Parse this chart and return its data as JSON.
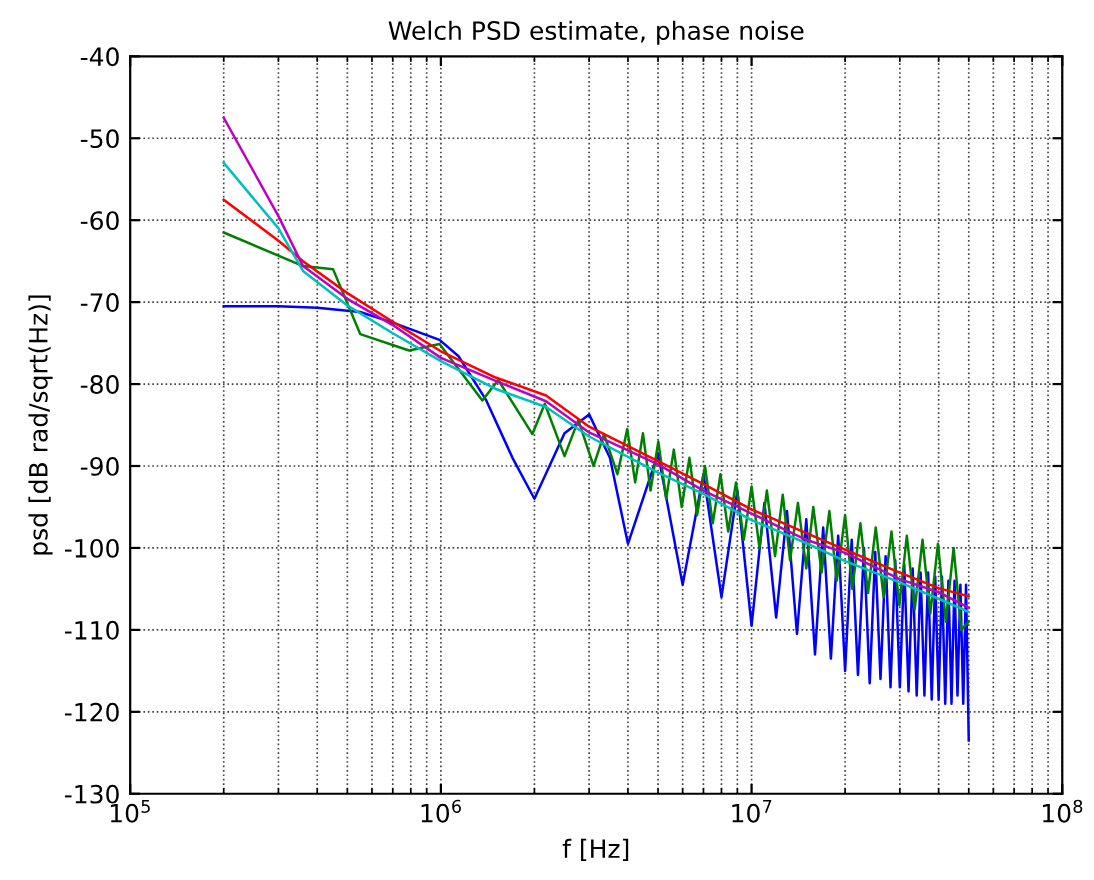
{
  "chart_data": {
    "type": "line",
    "title": "Welch PSD estimate, phase noise",
    "xlabel": "f [Hz]",
    "ylabel": "psd [dB rad/sqrt(Hz)]",
    "log": "x",
    "grid": true,
    "line_style": "solid",
    "xlim": [
      100000,
      100000000
    ],
    "xticks": [
      {
        "value": 100000,
        "label": "10$^{5}$"
      },
      {
        "value": 1000000,
        "label": "10$^{6}$"
      },
      {
        "value": 10000000,
        "label": "10$^{7}$"
      },
      {
        "value": 100000000,
        "label": "10$^{8}$"
      }
    ],
    "ylim": [
      -130,
      -40
    ],
    "yticks": [
      -130,
      -120,
      -110,
      -100,
      -90,
      -80,
      -70,
      -60,
      -50,
      -40
    ],
    "series": [
      {
        "color": "#0000ff",
        "x": [
          200000.0,
          300000.0,
          400000.0,
          550000.0,
          700000.0,
          990000.0,
          1140000.0,
          1400000.0,
          1700000.0,
          2000000.0,
          2500000.0,
          3000000.0,
          3500000.0,
          4000000.0,
          5000000.0,
          6000000.0,
          7000000.0,
          8000000.0,
          9000000.0,
          10000000.0,
          11000000.0,
          12000000.0,
          13000000.0,
          14000000.0,
          15000000.0,
          16000000.0,
          17000000.0,
          18000000.0,
          19000000.0,
          20000000.0,
          21000000.0,
          22000000.0,
          23000000.0,
          24000000.0,
          25000000.0,
          26000000.0,
          27000000.0,
          28000000.0,
          29000000.0,
          30000000.0,
          31000000.0,
          32000000.0,
          33000000.0,
          34000000.0,
          35000000.0,
          36000000.0,
          37000000.0,
          38000000.0,
          39000000.0,
          40000000.0,
          41000000.0,
          42000000.0,
          43000000.0,
          44000000.0,
          45000000.0,
          46000000.0,
          47000000.0,
          48000000.0,
          49000000.0,
          50000000.0
        ],
        "values": [
          -70.5,
          -70.5,
          -70.7,
          -71.2,
          -72.5,
          -74.6,
          -76.6,
          -82,
          -89,
          -94,
          -86,
          -83.7,
          -89,
          -99.5,
          -88.5,
          -104.5,
          -91,
          -106,
          -93,
          -109.5,
          -94.5,
          -108.5,
          -95.5,
          -110.5,
          -96.5,
          -113,
          -97.5,
          -113.5,
          -98.5,
          -115,
          -99,
          -115.5,
          -100,
          -116.5,
          -100.5,
          -116,
          -101,
          -117,
          -101.5,
          -117,
          -102,
          -117.5,
          -102.5,
          -118,
          -103,
          -118,
          -103,
          -118.5,
          -103.5,
          -118.5,
          -103.5,
          -119,
          -104,
          -119,
          -104,
          -118,
          -104.5,
          -119,
          -104.5,
          -123.5
        ]
      },
      {
        "color": "#008000",
        "x": [
          200000.0,
          360000.0,
          450000.0,
          550000.0,
          790000.0,
          990000.0,
          1360000.0,
          1530000.0,
          1970000.0,
          2160000.0,
          2500000.0,
          2770000.0,
          3100000.0,
          3350000.0,
          3700000.0,
          3980000.0,
          4220000.0,
          4470000.0,
          4730000.0,
          5010000.0,
          5310000.0,
          5620000.0,
          5960000.0,
          6310000.0,
          6680000.0,
          7080000.0,
          7500000.0,
          7940000.0,
          8410000.0,
          8910000.0,
          9440000.0,
          10000000.0,
          10600000.0,
          11200000.0,
          11900000.0,
          12600000.0,
          13300000.0,
          14100000.0,
          15000000.0,
          15800000.0,
          16800000.0,
          17800000.0,
          18800000.0,
          20000000.0,
          21100000.0,
          22400000.0,
          23700000.0,
          25100000.0,
          26600000.0,
          28200000.0,
          29900000.0,
          31600000.0,
          33500000.0,
          35500000.0,
          37600000.0,
          39800000.0,
          42200000.0,
          44700000.0,
          47300000.0,
          50000000.0
        ],
        "values": [
          -61.5,
          -65.6,
          -66,
          -73.9,
          -75.9,
          -75.1,
          -82,
          -79.5,
          -86.1,
          -82.4,
          -88.8,
          -84.4,
          -90,
          -86.1,
          -91,
          -85.5,
          -92,
          -86,
          -93,
          -87,
          -94,
          -88,
          -95,
          -89,
          -96,
          -90,
          -97,
          -91,
          -98,
          -92,
          -99,
          -92.5,
          -100,
          -93,
          -101,
          -93.5,
          -101.5,
          -94.5,
          -102.5,
          -95,
          -103,
          -95.5,
          -104,
          -96,
          -105,
          -97,
          -105.5,
          -97.5,
          -106,
          -98,
          -107,
          -98.5,
          -107.5,
          -99,
          -108,
          -99.5,
          -109,
          -100,
          -110,
          -109
        ]
      },
      {
        "color": "#ff0000",
        "x": [
          200000.0,
          300000.0,
          360000.0,
          500000.0,
          700000.0,
          1000000.0,
          1500000.0,
          2180000.0,
          3000000.0,
          5000000.0,
          7000000.0,
          10000000.0,
          15000000.0,
          20000000.0,
          30000000.0,
          40000000.0,
          50000000.0
        ],
        "values": [
          -57.5,
          -62.5,
          -65,
          -68.9,
          -72.4,
          -76,
          -79.2,
          -81.4,
          -85.2,
          -89.4,
          -92.2,
          -95.3,
          -98.2,
          -100.2,
          -103,
          -104.9,
          -105.9
        ]
      },
      {
        "color": "#00bfbf",
        "x": [
          200000.0,
          300000.0,
          360000.0,
          500000.0,
          700000.0,
          1000000.0,
          1500000.0,
          2180000.0,
          3000000.0,
          5000000.0,
          7000000.0,
          10000000.0,
          15000000.0,
          20000000.0,
          30000000.0,
          40000000.0,
          50000000.0
        ],
        "values": [
          -53,
          -61,
          -66.2,
          -70.4,
          -73.8,
          -77.2,
          -80.6,
          -82.8,
          -86.4,
          -90.8,
          -93.4,
          -96.6,
          -99.4,
          -101.6,
          -104.2,
          -106.2,
          -107.8
        ]
      },
      {
        "color": "#bf00bf",
        "x": [
          200000.0,
          300000.0,
          360000.0,
          500000.0,
          700000.0,
          1000000.0,
          1500000.0,
          2180000.0,
          3000000.0,
          5000000.0,
          7000000.0,
          10000000.0,
          15000000.0,
          20000000.0,
          30000000.0,
          40000000.0,
          50000000.0
        ],
        "values": [
          -47.5,
          -59.5,
          -65.6,
          -69.6,
          -72.8,
          -76.8,
          -79.6,
          -82.1,
          -85.9,
          -89.8,
          -93,
          -95.8,
          -99,
          -100.6,
          -103.8,
          -105.4,
          -107.3
        ]
      }
    ]
  }
}
